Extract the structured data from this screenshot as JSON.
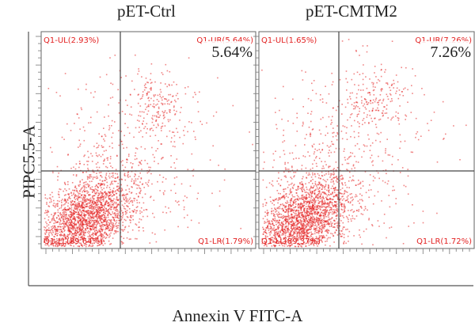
{
  "chart_data": {
    "type": "scatter",
    "xlabel": "Annexin V FITC-A",
    "ylabel": "PIPC5.5-A",
    "colors": {
      "dots": "#e32222",
      "gate": "#444444",
      "quad_label": "#e32222",
      "axis": "#555555"
    },
    "panels": [
      {
        "title": "pET-Ctrl",
        "apoptosis_rate": "5.64%",
        "quadrants": {
          "UL": "Q1-UL(2.93%)",
          "UR": "Q1-UR(5.64%)",
          "LL": "Q1-LL(89.64%)",
          "LR": "Q1-LR(1.79%)"
        },
        "quadrant_percent": {
          "UL": 2.93,
          "UR": 5.64,
          "LL": 89.64,
          "LR": 1.79
        }
      },
      {
        "title": "pET-CMTM2",
        "apoptosis_rate": "7.26%",
        "quadrants": {
          "UL": "Q1-UL(1.65%)",
          "UR": "Q1-UR(7.26%)",
          "LL": "Q1-LL(89.37%)",
          "LR": "Q1-LR(1.72%)"
        },
        "quadrant_percent": {
          "UL": 1.65,
          "UR": 7.26,
          "LL": 89.37,
          "LR": 1.72
        }
      }
    ],
    "legend": "none",
    "grid": false
  }
}
